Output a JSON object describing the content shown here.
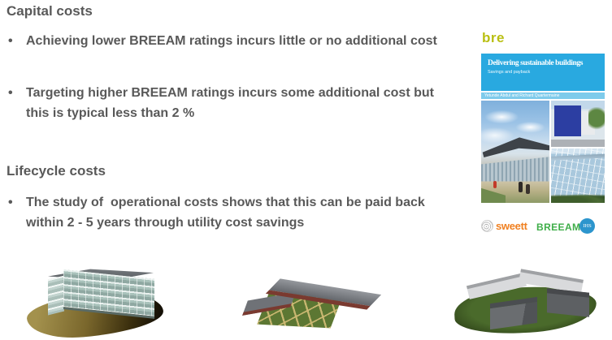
{
  "ui": {
    "bullet_char": "•"
  },
  "content": {
    "capital": {
      "heading": "Capital costs",
      "bullets": [
        "Achieving lower BREEAM ratings incurs little or no additional cost",
        "Targeting higher BREEAM ratings incurs some additional cost but this is typical less than 2 %"
      ]
    },
    "lifecycle": {
      "heading": "Lifecycle costs",
      "bullets": [
        "The study of  operational costs shows that this can be paid back within 2 - 5 years through utility cost savings"
      ]
    }
  },
  "book_cover": {
    "publisher_logo": "bre",
    "title": "Delivering sustainable buildings",
    "subtitle": "Savings and payback",
    "authors": "Yetunde Abdul and Richard Quartermaine",
    "footer_logos": {
      "sweett": "sweett",
      "breeam": "BREEAM",
      "breeam_mark": "®",
      "ihs": "IHS"
    }
  },
  "colors": {
    "body_text": "#595959",
    "bre_green": "#b9bf12",
    "band_cyan": "#29a9e0",
    "author_strip_cyan": "#7ecbeb",
    "sweett_orange": "#f08021",
    "breeam_green": "#3fae49",
    "ihs_blue": "#2c95cd"
  },
  "images": {
    "cover_photo_left": "modern-building-entrance-photo",
    "cover_photo_top_right": "blue-building-street-photo",
    "cover_photo_bottom_right": "glass-building-photo",
    "bottom_left": "glass-office-building-3d-render",
    "bottom_middle": "low-rise-school-courtyard-3d-render",
    "bottom_right": "curved-campus-buildings-3d-render"
  }
}
